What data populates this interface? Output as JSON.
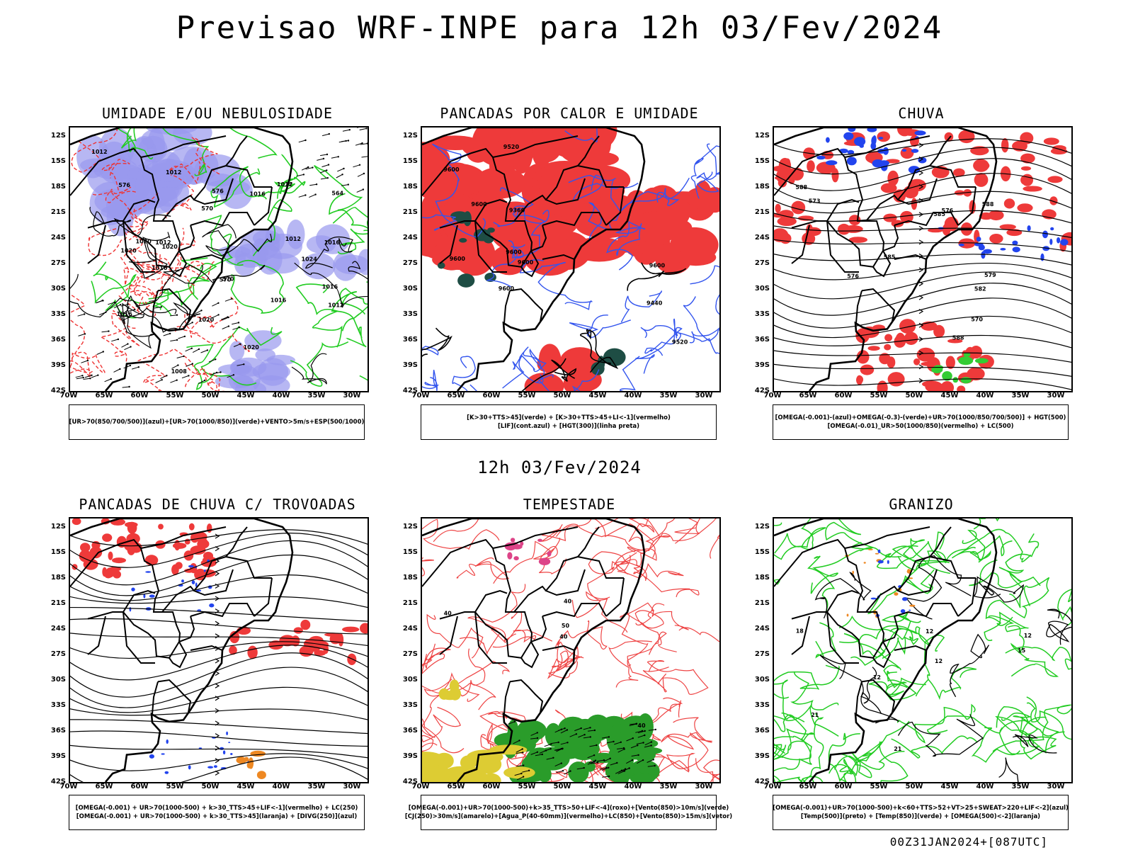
{
  "title": "Previsao WRF-INPE  para 12h 03/Fev/2024",
  "subtitle": "12h 03/Fev/2024",
  "footer": "00Z31JAN2024+[087UTC]",
  "chart_data": [
    {
      "type": "heatmap",
      "title": "UMIDADE E/OU NEBULOSIDADE",
      "legend": [
        "[UR>70(850/700/500)](azul)+[UR>70(1000/850)](verde)+VENTO>5m/s+ESP(500/1000)"
      ],
      "x_ticks": [
        "70W",
        "65W",
        "60W",
        "55W",
        "50W",
        "45W",
        "40W",
        "35W",
        "30W"
      ],
      "y_ticks": [
        "12S",
        "15S",
        "18S",
        "21S",
        "24S",
        "27S",
        "30S",
        "33S",
        "36S",
        "39S",
        "42S"
      ],
      "contour_labels": [
        "1012",
        "1012",
        "1016",
        "1016",
        "1016",
        "1016",
        "1012",
        "1020",
        "1020",
        "1016",
        "1008",
        "1012",
        "1012",
        "1016",
        "1020",
        "1020",
        "1012",
        "1024",
        "1020",
        "576",
        "570",
        "570",
        "576",
        "570",
        "564"
      ]
    },
    {
      "type": "heatmap",
      "title": "PANCADAS POR CALOR E UMIDADE",
      "legend": [
        "[K>30+TTS>45](verde) + [K>30+TTS>45+LI<-1](vermelho)",
        "[LIF](cont.azul) + [HGT(300)](linha preta)"
      ],
      "x_ticks": [
        "70W",
        "65W",
        "60W",
        "55W",
        "50W",
        "45W",
        "40W",
        "35W",
        "30W"
      ],
      "y_ticks": [
        "12S",
        "15S",
        "18S",
        "21S",
        "24S",
        "27S",
        "30S",
        "33S",
        "36S",
        "39S",
        "42S"
      ],
      "contour_labels": [
        "9600",
        "9600",
        "9600",
        "9600",
        "9600",
        "9600",
        "9600",
        "9520",
        "9520",
        "9440",
        "9360"
      ]
    },
    {
      "type": "heatmap",
      "title": "CHUVA",
      "legend": [
        "[OMEGA(-0.001)-(azul)+OMEGA(-0.3)-(verde)+UR>70(1000/850/700/500)] + HGT(500)",
        "[OMEGA(-0.01)_UR>50(1000/850)(vermelho) + LC(500)"
      ],
      "x_ticks": [
        "70W",
        "65W",
        "60W",
        "55W",
        "50W",
        "45W",
        "40W",
        "35W",
        "30W"
      ],
      "y_ticks": [
        "12S",
        "15S",
        "18S",
        "21S",
        "24S",
        "27S",
        "30S",
        "33S",
        "36S",
        "39S",
        "42S"
      ],
      "contour_labels": [
        "588",
        "588",
        "588",
        "585",
        "585",
        "582",
        "579",
        "576",
        "573",
        "570",
        "576"
      ]
    },
    {
      "type": "heatmap",
      "title": "PANCADAS DE CHUVA C/ TROVOADAS",
      "legend": [
        "[OMEGA(-0.001) + UR>70(1000-500) + k>30_TTS>45+LIF<-1](vermelho) + LC(250)",
        "[OMEGA(-0.001) + UR>70(1000-500) + k>30_TTS>45](laranja) + [DIVG(250)](azul)"
      ],
      "x_ticks": [
        "70W",
        "65W",
        "60W",
        "55W",
        "50W",
        "45W",
        "40W",
        "35W",
        "30W"
      ],
      "y_ticks": [
        "12S",
        "15S",
        "18S",
        "21S",
        "24S",
        "27S",
        "30S",
        "33S",
        "36S",
        "39S",
        "42S"
      ],
      "contour_labels": []
    },
    {
      "type": "heatmap",
      "title": "TEMPESTADE",
      "legend": [
        "[OMEGA(-0.001)+UR>70(1000-500)+k>35_TTS>50+LIF<-4](roxo)+[Vento(850)>10m/s](verde)",
        "[CJ(250)>30m/s](amarelo)+[Agua_P(40-60mm)](vermelho)+LC(850)+[Vento(850)>15m/s](vetor)"
      ],
      "x_ticks": [
        "70W",
        "65W",
        "60W",
        "55W",
        "50W",
        "45W",
        "40W",
        "35W",
        "30W"
      ],
      "y_ticks": [
        "12S",
        "15S",
        "18S",
        "21S",
        "24S",
        "27S",
        "30S",
        "33S",
        "36S",
        "39S",
        "42S"
      ],
      "contour_labels": [
        "40",
        "40",
        "40",
        "50",
        "40"
      ]
    },
    {
      "type": "heatmap",
      "title": "GRANIZO",
      "legend": [
        "[OMEGA(-0.001)+UR>70(1000-500)+k<60+TTS>52+VT>25+SWEAT>220+LIF<-2](azul)",
        "[Temp(500)](preto) + [Temp(850)](verde) + [OMEGA(500)<-2](laranja)"
      ],
      "x_ticks": [
        "70W",
        "65W",
        "60W",
        "55W",
        "50W",
        "45W",
        "40W",
        "35W",
        "30W"
      ],
      "y_ticks": [
        "12S",
        "15S",
        "18S",
        "21S",
        "24S",
        "27S",
        "30S",
        "33S",
        "36S",
        "39S",
        "42S"
      ],
      "contour_labels": [
        "18",
        "15",
        "12",
        "12",
        "12",
        "21",
        "21",
        "12"
      ]
    }
  ]
}
